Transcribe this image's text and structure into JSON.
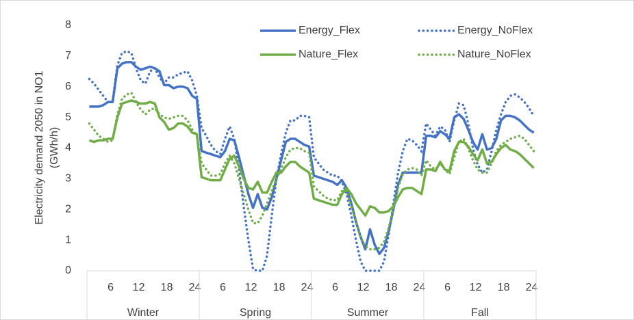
{
  "chart_data": {
    "type": "line",
    "y_label": [
      "Electricity demand 2050 in NO1",
      "(GWh/h)"
    ],
    "categories": [
      null,
      null,
      null,
      null,
      null,
      "6",
      null,
      null,
      null,
      null,
      null,
      "12",
      null,
      null,
      null,
      null,
      null,
      "18",
      null,
      null,
      null,
      null,
      null,
      "24",
      null,
      null,
      null,
      null,
      null,
      "6",
      null,
      null,
      null,
      null,
      null,
      "12",
      null,
      null,
      null,
      null,
      null,
      "18",
      null,
      null,
      null,
      null,
      null,
      "24",
      null,
      null,
      null,
      null,
      null,
      "6",
      null,
      null,
      null,
      null,
      null,
      "12",
      null,
      null,
      null,
      null,
      null,
      "18",
      null,
      null,
      null,
      null,
      null,
      "24",
      null,
      null,
      null,
      null,
      null,
      "6",
      null,
      null,
      null,
      null,
      null,
      "12",
      null,
      null,
      null,
      null,
      null,
      "18",
      null,
      null,
      null,
      null,
      null,
      "24"
    ],
    "groups": [
      "Winter",
      "Spring",
      "Summer",
      "Fall"
    ],
    "ylim": [
      0,
      8
    ],
    "yticks": [
      0,
      1,
      2,
      3,
      4,
      5,
      6,
      7,
      8
    ],
    "legend": "top",
    "series": [
      {
        "name": "Energy_Flex",
        "color": "#4472c4",
        "style": "solid",
        "values": [
          5.35,
          5.35,
          5.35,
          5.4,
          5.5,
          5.5,
          6.6,
          6.75,
          6.8,
          6.8,
          6.65,
          6.55,
          6.6,
          6.65,
          6.6,
          6.5,
          6.05,
          6.05,
          5.95,
          6.0,
          6.0,
          5.95,
          5.7,
          5.6,
          3.9,
          3.85,
          3.8,
          3.75,
          3.7,
          3.9,
          4.3,
          4.25,
          3.7,
          3.1,
          2.5,
          2.05,
          2.5,
          2.05,
          2.0,
          2.4,
          3.0,
          3.6,
          4.2,
          4.3,
          4.3,
          4.2,
          4.1,
          4.05,
          3.1,
          3.05,
          3.0,
          2.95,
          2.9,
          2.8,
          2.95,
          2.7,
          2.2,
          1.6,
          1.1,
          0.7,
          1.35,
          0.85,
          0.55,
          0.75,
          1.3,
          2.0,
          2.8,
          3.2,
          3.2,
          3.2,
          3.2,
          3.2,
          4.4,
          4.4,
          4.35,
          4.55,
          4.45,
          4.3,
          5.0,
          5.1,
          4.95,
          4.6,
          4.2,
          3.95,
          4.45,
          3.95,
          4.0,
          4.3,
          4.9,
          5.05,
          5.05,
          5.0,
          4.9,
          4.75,
          4.6,
          4.5
        ]
      },
      {
        "name": "Energy_NoFlex",
        "color": "#4472c4",
        "style": "dotted",
        "values": [
          6.25,
          6.1,
          5.9,
          5.7,
          5.5,
          5.55,
          6.7,
          7.1,
          7.15,
          7.1,
          6.6,
          6.2,
          6.1,
          6.5,
          6.6,
          6.3,
          6.1,
          6.3,
          6.3,
          6.4,
          6.45,
          6.5,
          6.2,
          5.7,
          4.65,
          4.4,
          4.1,
          3.9,
          3.8,
          4.3,
          4.7,
          4.3,
          3.3,
          2.1,
          1.0,
          0.05,
          0.0,
          0.0,
          0.5,
          1.8,
          3.0,
          3.8,
          4.5,
          4.9,
          4.9,
          5.05,
          5.05,
          5.0,
          3.7,
          3.5,
          3.3,
          3.2,
          3.1,
          3.1,
          2.9,
          2.5,
          1.8,
          1.0,
          0.3,
          0.0,
          0.0,
          0.0,
          0.0,
          0.3,
          1.2,
          2.2,
          3.2,
          3.9,
          4.3,
          4.25,
          4.1,
          3.9,
          4.8,
          4.6,
          4.4,
          4.7,
          4.6,
          4.2,
          4.9,
          5.45,
          5.4,
          4.8,
          4.0,
          3.45,
          3.2,
          3.3,
          3.9,
          4.6,
          5.1,
          5.5,
          5.7,
          5.75,
          5.65,
          5.5,
          5.3,
          5.05
        ]
      },
      {
        "name": "Nature_Flex",
        "color": "#70ad47",
        "style": "solid",
        "values": [
          4.25,
          4.2,
          4.25,
          4.25,
          4.3,
          4.3,
          5.0,
          5.45,
          5.5,
          5.55,
          5.5,
          5.45,
          5.45,
          5.5,
          5.45,
          5.0,
          4.85,
          4.6,
          4.65,
          4.8,
          4.8,
          4.7,
          4.5,
          4.45,
          3.05,
          3.0,
          2.95,
          2.95,
          2.95,
          3.3,
          3.65,
          3.75,
          3.4,
          3.0,
          2.7,
          2.65,
          2.9,
          2.55,
          2.55,
          2.9,
          3.2,
          3.2,
          3.4,
          3.55,
          3.55,
          3.4,
          3.3,
          3.2,
          2.35,
          2.3,
          2.25,
          2.2,
          2.15,
          2.15,
          2.5,
          2.7,
          2.5,
          2.2,
          2.0,
          1.8,
          2.1,
          2.05,
          1.9,
          1.9,
          1.95,
          2.1,
          2.4,
          2.65,
          2.7,
          2.7,
          2.6,
          2.5,
          3.3,
          3.3,
          3.25,
          3.55,
          3.3,
          3.25,
          3.9,
          4.2,
          4.2,
          4.05,
          3.8,
          3.6,
          3.95,
          3.5,
          3.55,
          3.8,
          4.0,
          4.1,
          3.95,
          3.9,
          3.8,
          3.65,
          3.5,
          3.35
        ]
      },
      {
        "name": "Nature_NoFlex",
        "color": "#70ad47",
        "style": "dotted",
        "values": [
          4.8,
          4.6,
          4.4,
          4.3,
          4.2,
          4.25,
          5.1,
          5.6,
          5.75,
          5.8,
          5.5,
          5.25,
          5.1,
          5.25,
          5.3,
          5.1,
          5.0,
          4.95,
          5.0,
          5.05,
          5.05,
          4.9,
          4.6,
          4.4,
          3.5,
          3.3,
          3.1,
          3.1,
          3.15,
          3.5,
          3.75,
          3.5,
          3.0,
          2.5,
          2.0,
          1.55,
          1.55,
          1.8,
          2.2,
          2.6,
          3.0,
          3.3,
          3.7,
          3.95,
          4.0,
          4.0,
          3.9,
          3.85,
          2.75,
          2.6,
          2.45,
          2.35,
          2.3,
          2.3,
          2.6,
          2.6,
          2.1,
          1.6,
          1.1,
          0.8,
          0.7,
          0.7,
          0.75,
          0.95,
          1.4,
          2.0,
          2.7,
          3.15,
          3.3,
          3.35,
          3.3,
          3.1,
          3.6,
          3.4,
          3.3,
          3.5,
          3.3,
          3.15,
          3.7,
          4.2,
          4.3,
          4.0,
          3.6,
          3.3,
          3.2,
          3.2,
          3.5,
          3.9,
          4.1,
          4.2,
          4.3,
          4.35,
          4.4,
          4.3,
          4.1,
          3.9
        ]
      }
    ]
  }
}
